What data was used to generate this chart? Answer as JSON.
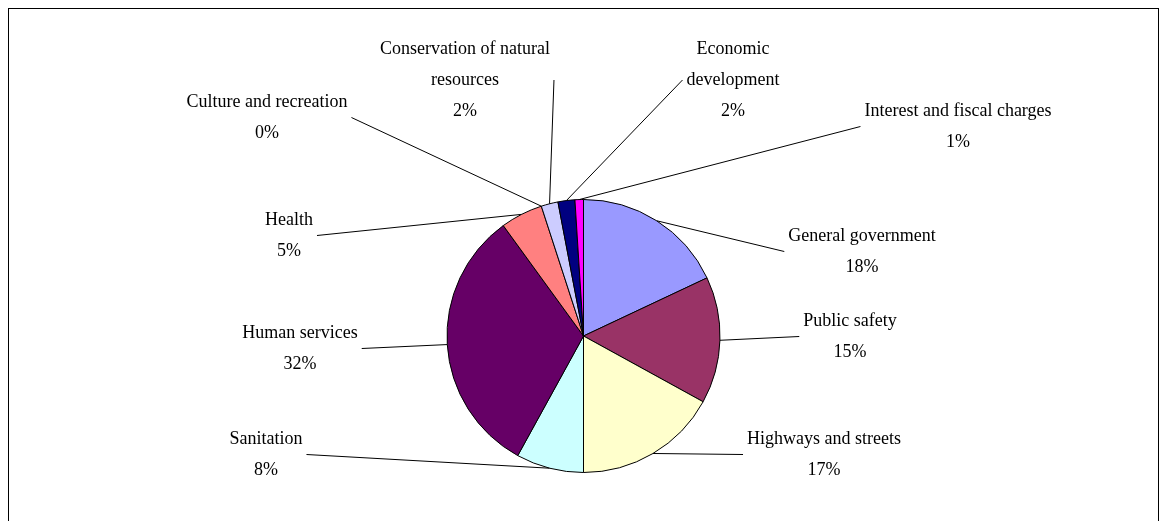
{
  "chart_data": {
    "type": "pie",
    "categories": [
      "General government",
      "Public safety",
      "Highways and streets",
      "Sanitation",
      "Human services",
      "Health",
      "Culture and recreation",
      "Conservation of natural resources",
      "Economic development",
      "Interest and fiscal charges"
    ],
    "values": [
      18,
      15,
      17,
      8,
      32,
      5,
      0,
      2,
      2,
      1
    ],
    "value_labels": [
      "18%",
      "15%",
      "17%",
      "8%",
      "32%",
      "5%",
      "0%",
      "2%",
      "2%",
      "1%"
    ],
    "colors": [
      "#9999ff",
      "#993366",
      "#ffffcc",
      "#ccffff",
      "#660066",
      "#ff8080",
      "#0066cc",
      "#ccccff",
      "#000080",
      "#ff00ff"
    ],
    "legend": false
  }
}
